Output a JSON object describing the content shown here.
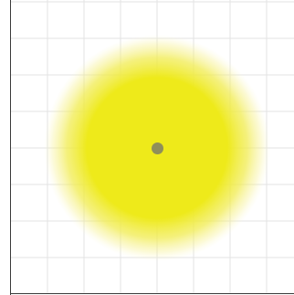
{
  "scene": {
    "glow_color": "#eeea1a",
    "glow_fade_color": "#f6f08a",
    "light_source_color": "#8f8f5a",
    "grid_line_color": "#e3e3e3",
    "axis_color": "#3a3a3a"
  }
}
